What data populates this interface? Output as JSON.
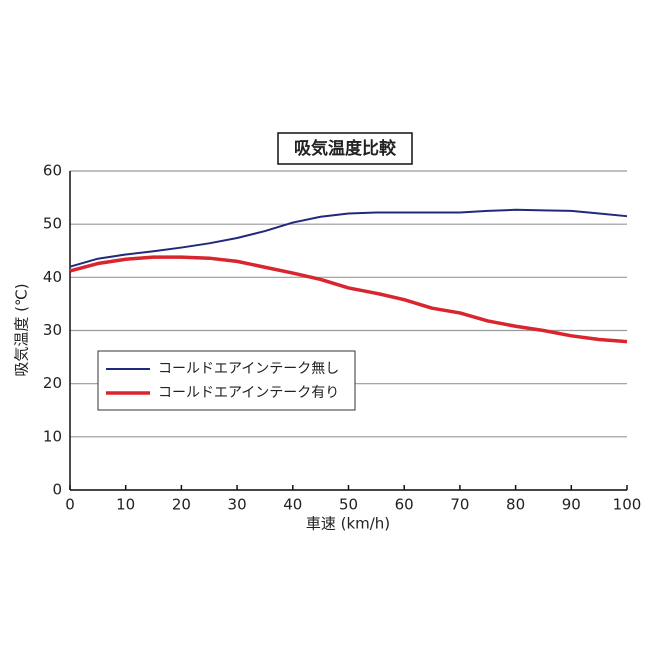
{
  "chart_data": {
    "type": "line",
    "title": "吸気温度比較",
    "x_label": "車速 (km/h)",
    "y_label": "吸気温度 (℃)",
    "x": [
      0,
      5,
      10,
      15,
      20,
      25,
      30,
      35,
      40,
      45,
      50,
      55,
      60,
      65,
      70,
      75,
      80,
      85,
      90,
      95,
      100
    ],
    "series": [
      {
        "name": "コールドエアインテーク無し",
        "color": "#1f2a7a",
        "width": 2,
        "values": [
          42,
          43.5,
          44.3,
          44.9,
          45.6,
          46.4,
          47.4,
          48.7,
          50.3,
          51.4,
          52.0,
          52.2,
          52.2,
          52.2,
          52.2,
          52.5,
          52.7,
          52.6,
          52.5,
          52.0,
          51.5
        ]
      },
      {
        "name": "コールドエアインテーク有り",
        "color": "#d9252e",
        "width": 3.5,
        "values": [
          41.2,
          42.6,
          43.4,
          43.8,
          43.8,
          43.6,
          43.0,
          41.9,
          40.8,
          39.6,
          38.0,
          37.0,
          35.8,
          34.2,
          33.3,
          31.8,
          30.8,
          30.0,
          29.0,
          28.3,
          27.9
        ]
      }
    ],
    "xlim": [
      0,
      100
    ],
    "xticks": [
      0,
      10,
      20,
      30,
      40,
      50,
      60,
      70,
      80,
      90,
      100
    ],
    "ylim": [
      0,
      60
    ],
    "yticks": [
      0,
      10,
      20,
      30,
      40,
      50,
      60
    ],
    "grid": true
  }
}
